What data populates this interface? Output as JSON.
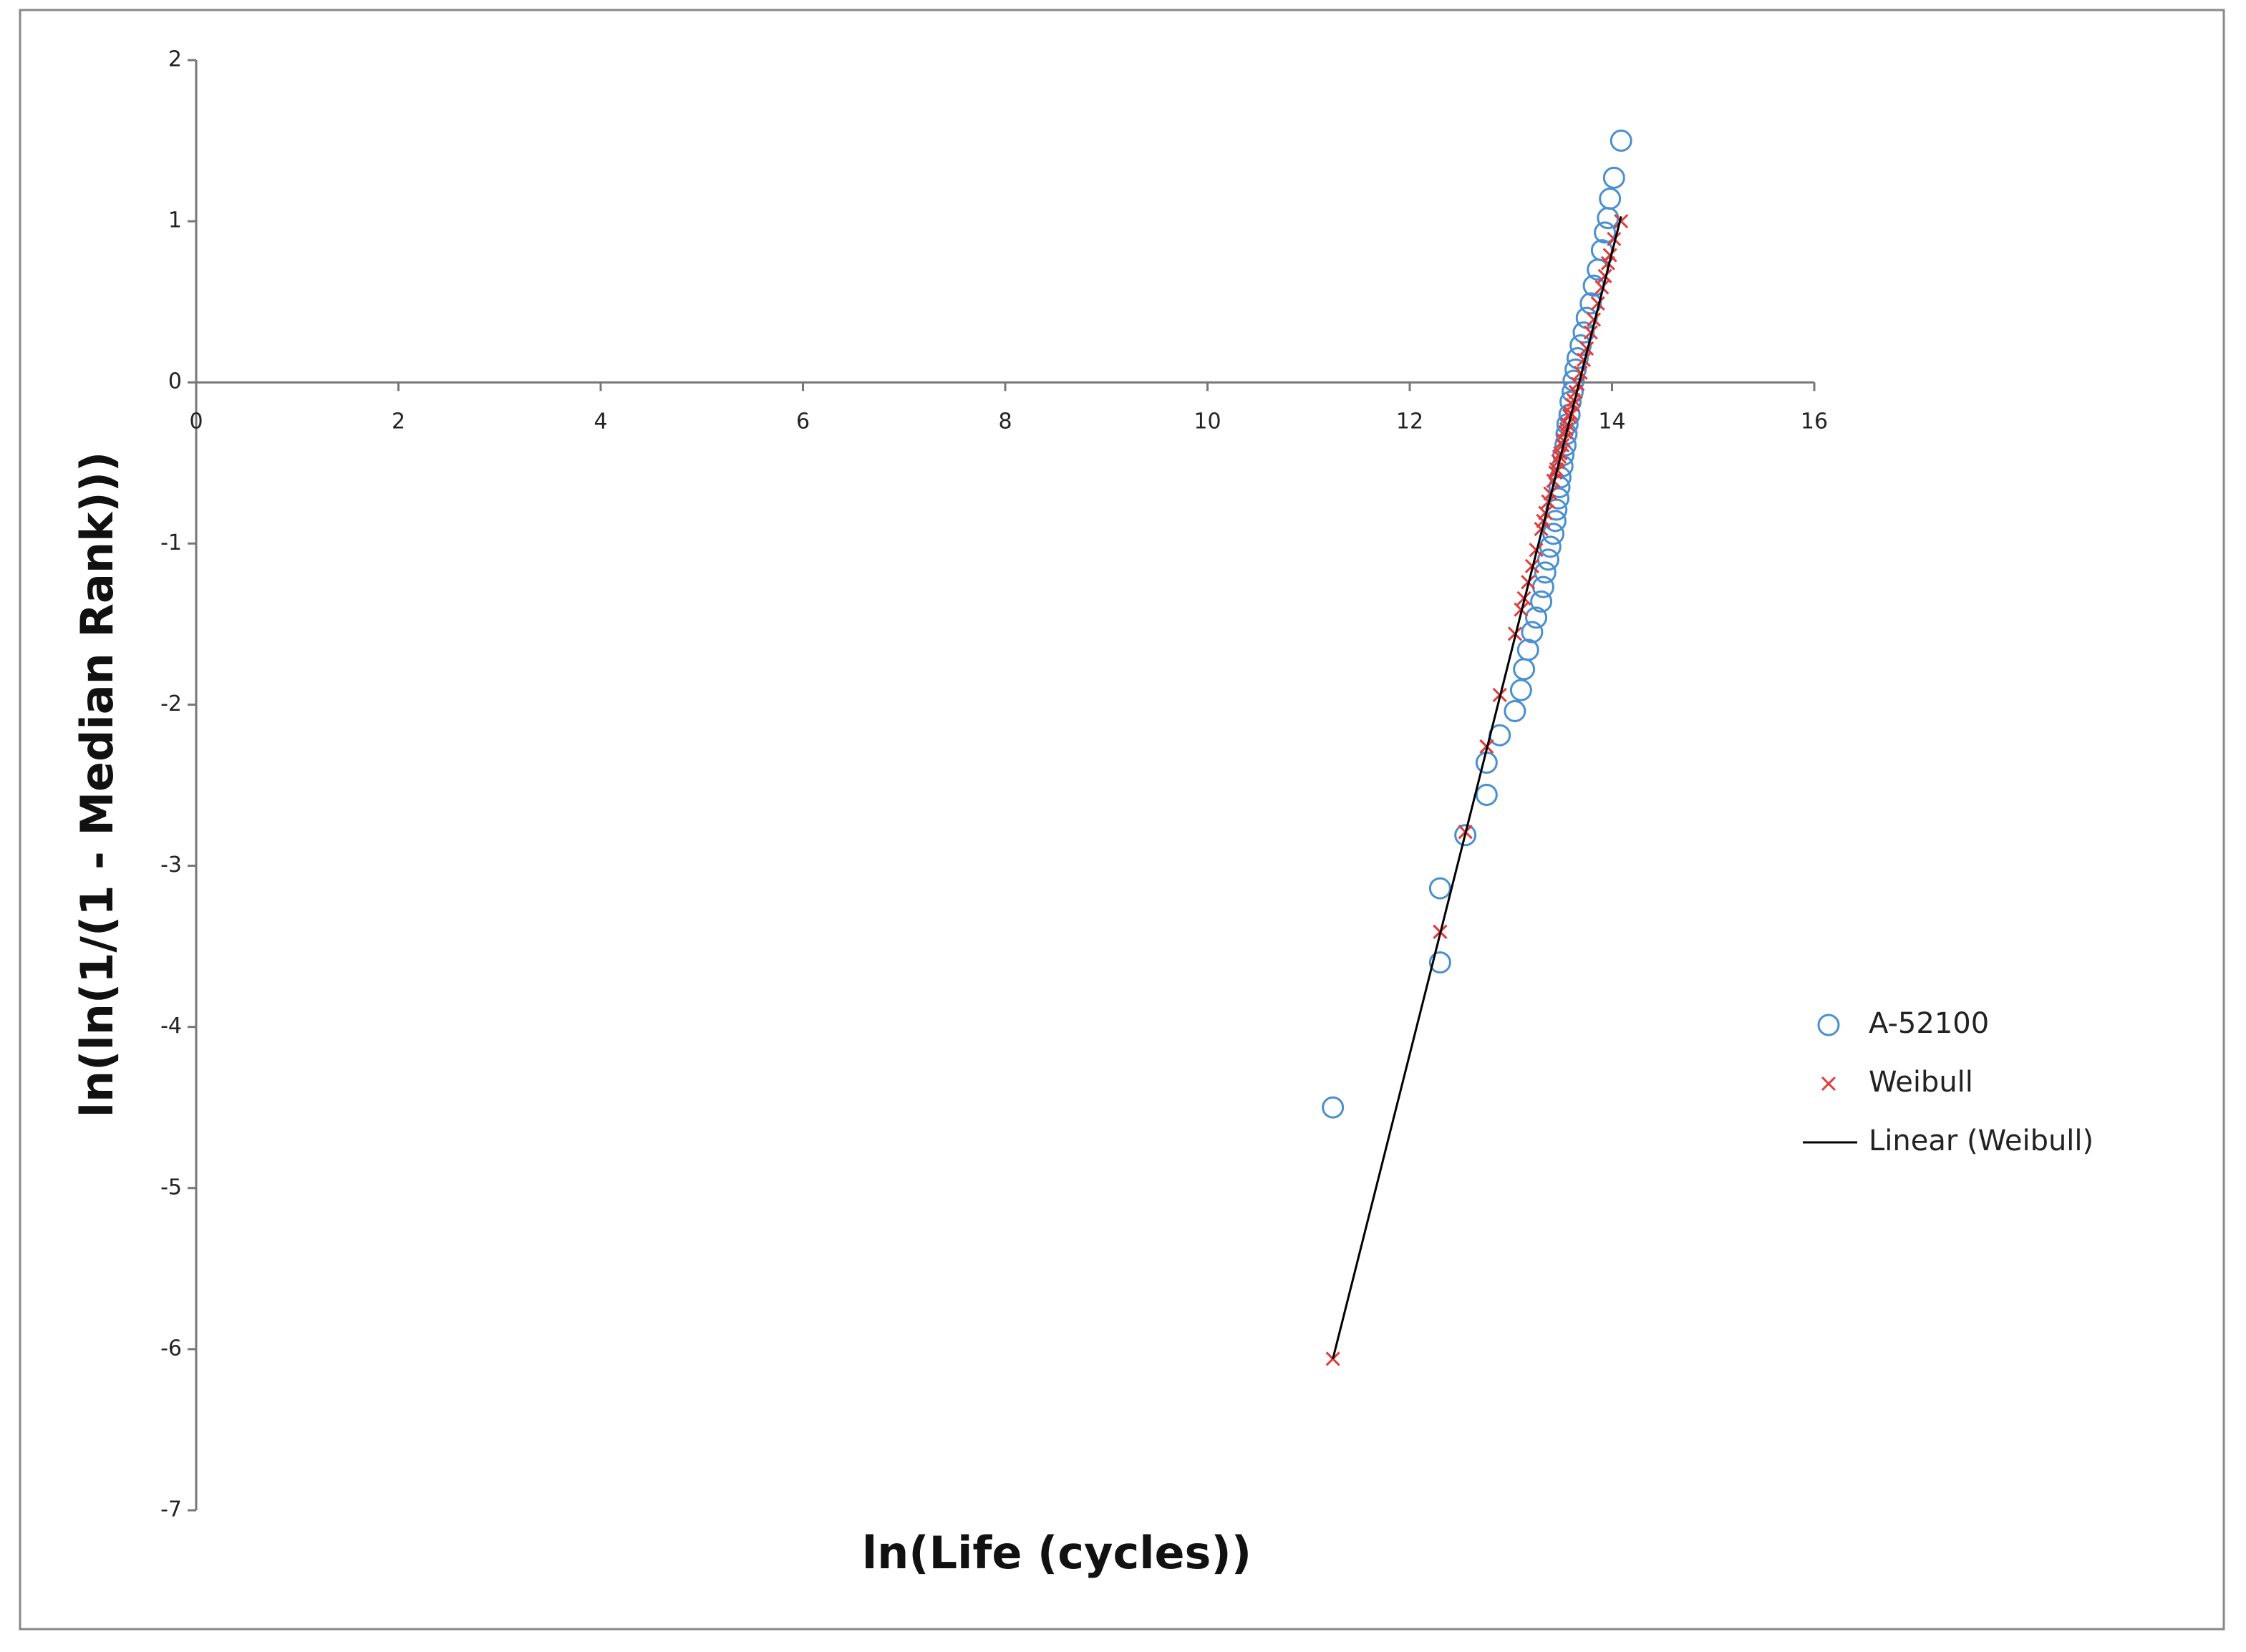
{
  "chart_data": {
    "type": "scatter",
    "xlabel": "ln(Life (cycles))",
    "ylabel": "ln(ln(1/(1 - Median Rank)))",
    "xlim": [
      0,
      16
    ],
    "ylim": [
      -7,
      2
    ],
    "xticks": [
      0,
      2,
      4,
      6,
      8,
      10,
      12,
      14,
      16
    ],
    "yticks": [
      -7,
      -6,
      -5,
      -4,
      -3,
      -2,
      -1,
      0,
      1,
      2
    ],
    "grid": false,
    "legend": "right",
    "series": [
      {
        "name": "A-52100",
        "color": "#4a8fd0",
        "marker": "circle",
        "x": [
          11.24,
          12.3,
          12.3,
          12.55,
          12.76,
          12.76,
          12.89,
          13.04,
          13.1,
          13.13,
          13.17,
          13.21,
          13.25,
          13.3,
          13.32,
          13.34,
          13.37,
          13.39,
          13.42,
          13.44,
          13.45,
          13.47,
          13.48,
          13.49,
          13.51,
          13.52,
          13.54,
          13.55,
          13.56,
          13.58,
          13.59,
          13.61,
          13.62,
          13.64,
          13.66,
          13.69,
          13.72,
          13.75,
          13.79,
          13.82,
          13.86,
          13.9,
          13.93,
          13.96,
          13.98,
          14.02,
          14.09
        ],
        "values": [
          -4.5,
          -3.6,
          -3.14,
          -2.81,
          -2.56,
          -2.36,
          -2.19,
          -2.04,
          -1.91,
          -1.78,
          -1.66,
          -1.55,
          -1.46,
          -1.36,
          -1.27,
          -1.18,
          -1.1,
          -1.02,
          -0.94,
          -0.86,
          -0.79,
          -0.72,
          -0.65,
          -0.59,
          -0.52,
          -0.45,
          -0.39,
          -0.32,
          -0.26,
          -0.2,
          -0.12,
          -0.06,
          0.01,
          0.08,
          0.15,
          0.23,
          0.31,
          0.4,
          0.49,
          0.6,
          0.7,
          0.82,
          0.93,
          1.02,
          1.14,
          1.27,
          1.5
        ]
      },
      {
        "name": "Weibull",
        "color": "#e03c3c",
        "marker": "x",
        "x": [
          11.24,
          12.3,
          12.3,
          12.55,
          12.76,
          12.76,
          12.89,
          13.04,
          13.1,
          13.13,
          13.17,
          13.21,
          13.25,
          13.3,
          13.32,
          13.34,
          13.37,
          13.39,
          13.42,
          13.44,
          13.45,
          13.47,
          13.48,
          13.49,
          13.51,
          13.52,
          13.54,
          13.55,
          13.56,
          13.58,
          13.59,
          13.61,
          13.62,
          13.64,
          13.66,
          13.69,
          13.72,
          13.75,
          13.79,
          13.82,
          13.86,
          13.9,
          13.93,
          13.96,
          13.98,
          14.02,
          14.09
        ],
        "values": [
          -6.06,
          -3.41,
          -3.41,
          -2.79,
          -2.26,
          -2.26,
          -1.94,
          -1.56,
          -1.41,
          -1.34,
          -1.24,
          -1.14,
          -1.04,
          -0.91,
          -0.86,
          -0.81,
          -0.74,
          -0.69,
          -0.61,
          -0.56,
          -0.54,
          -0.49,
          -0.46,
          -0.44,
          -0.39,
          -0.36,
          -0.31,
          -0.29,
          -0.26,
          -0.21,
          -0.19,
          -0.14,
          -0.11,
          -0.06,
          -0.01,
          0.06,
          0.14,
          0.21,
          0.31,
          0.39,
          0.49,
          0.59,
          0.66,
          0.74,
          0.79,
          0.89,
          1.0
        ]
      },
      {
        "name": "Linear (Weibull)",
        "color": "#000000",
        "marker": "line",
        "x": [
          11.24,
          14.09
        ],
        "values": [
          -6.06,
          1.03
        ]
      }
    ]
  }
}
